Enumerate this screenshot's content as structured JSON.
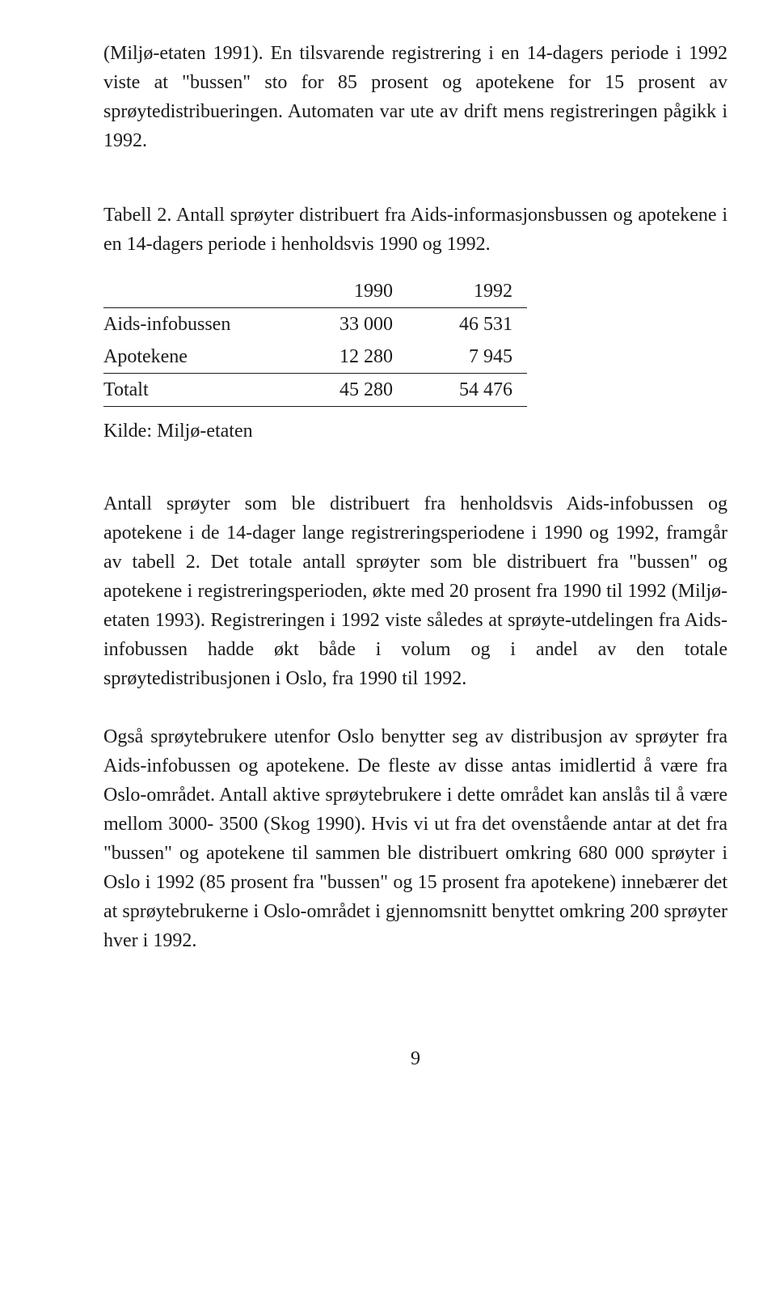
{
  "p1": "(Miljø-etaten 1991). En tilsvarende registrering i en 14-dagers periode i 1992 viste at \"bussen\" sto for 85 prosent og apotekene for 15 prosent av sprøytedistribueringen. Automaten var ute av drift mens registreringen pågikk i 1992.",
  "caption": "Tabell 2. Antall sprøyter distribuert fra Aids-informasjonsbussen og apotekene i en 14-dagers periode i henholdsvis 1990 og 1992.",
  "table": {
    "columns": [
      "",
      "1990",
      "1992"
    ],
    "rows": [
      [
        "Aids-infobussen",
        "33 000",
        "46 531"
      ],
      [
        "Apotekene",
        "12 280",
        "7 945"
      ],
      [
        "Totalt",
        "45 280",
        "54 476"
      ]
    ]
  },
  "source": "Kilde: Miljø-etaten",
  "p2": "Antall sprøyter som ble distribuert fra henholdsvis Aids-infobussen og apotekene i de 14-dager lange registreringsperiodene i 1990 og 1992, framgår av tabell 2. Det totale antall sprøyter som ble distribuert fra \"bussen\" og apotekene i registreringsperioden, økte med 20 prosent fra 1990 til 1992 (Miljø-etaten 1993). Registreringen i 1992 viste således at sprøyte-utdelingen fra Aids-infobussen hadde økt både i volum og i andel av den totale sprøytedistribusjonen i Oslo, fra 1990 til 1992.",
  "p3": "Også sprøytebrukere utenfor Oslo benytter seg av distribusjon av sprøyter fra Aids-infobussen og apotekene. De fleste av disse antas imidlertid å være fra Oslo-området. Antall aktive sprøytebrukere i dette området kan anslås til å være mellom 3000- 3500 (Skog 1990). Hvis vi ut fra det ovenstående antar at det fra \"bussen\" og apotekene til sammen ble distribuert omkring 680 000 sprøyter i Oslo i 1992 (85 prosent fra \"bussen\" og 15 prosent fra apotekene) innebærer det at sprøytebrukerne i Oslo-området i gjennomsnitt benyttet omkring 200 sprøyter hver i 1992.",
  "page_number": "9"
}
